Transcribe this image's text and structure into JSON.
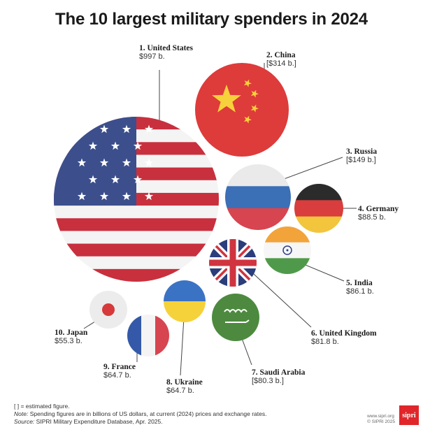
{
  "title": "The 10 largest military spenders in 2024",
  "chart_data": {
    "type": "bubble",
    "title": "The 10 largest military spenders in 2024",
    "unit": "billions of US dollars",
    "items": [
      {
        "rank": "1.",
        "country": "United States",
        "value": 997,
        "label": "$997 b."
      },
      {
        "rank": "2.",
        "country": "China",
        "value": 314,
        "label": "[$314 b.]"
      },
      {
        "rank": "3.",
        "country": "Russia",
        "value": 149,
        "label": "[$149 b.]"
      },
      {
        "rank": "4.",
        "country": "Germany",
        "value": 88.5,
        "label": "$88.5 b."
      },
      {
        "rank": "5.",
        "country": "India",
        "value": 86.1,
        "label": "$86.1 b."
      },
      {
        "rank": "6.",
        "country": "United Kingdom",
        "value": 81.8,
        "label": "$81.8 b."
      },
      {
        "rank": "7.",
        "country": "Saudi Arabia",
        "value": 80.3,
        "label": "[$80.3 b.]"
      },
      {
        "rank": "8.",
        "country": "Ukraine",
        "value": 64.7,
        "label": "$64.7 b."
      },
      {
        "rank": "9.",
        "country": "France",
        "value": 64.7,
        "label": "$64.7 b."
      },
      {
        "rank": "10.",
        "country": "Japan",
        "value": 55.3,
        "label": "$55.3 b."
      }
    ]
  },
  "footer": {
    "line1": "[ ] = estimated figure.",
    "note_label": "Note:",
    "note": " Spending figures are in billions of US dollars, at current (2024) prices and exchange rates.",
    "source_label": "Source:",
    "source": " SIPRI Military Expenditure Database, Apr. 2025."
  },
  "credit": {
    "url": "www.sipri.org",
    "copyright": "© SIPRI 2025"
  },
  "logo": "sipri"
}
